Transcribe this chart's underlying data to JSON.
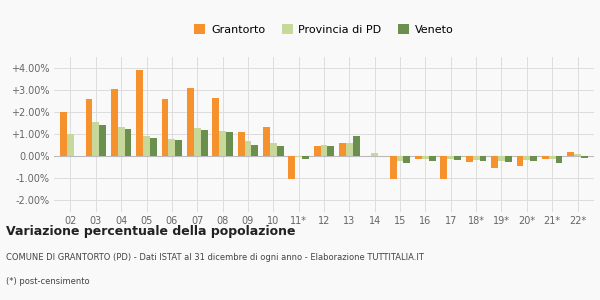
{
  "categories": [
    "02",
    "03",
    "04",
    "05",
    "06",
    "07",
    "08",
    "09",
    "10",
    "11*",
    "12",
    "13",
    "14",
    "15",
    "16",
    "17",
    "18*",
    "19*",
    "20*",
    "21*",
    "22*"
  ],
  "grantorto": [
    0.02,
    0.0258,
    0.0305,
    0.039,
    0.0258,
    0.031,
    0.0262,
    0.011,
    0.0135,
    -0.0105,
    0.0048,
    0.006,
    0.0003,
    -0.0102,
    -0.001,
    -0.0105,
    -0.0025,
    -0.0055,
    -0.0042,
    -0.001,
    0.002
  ],
  "provincia_pd": [
    0.0102,
    0.0155,
    0.0132,
    0.009,
    0.0078,
    0.0128,
    0.0115,
    0.0068,
    0.006,
    -0.0005,
    0.0052,
    0.006,
    0.0013,
    -0.0022,
    -0.0012,
    -0.001,
    -0.0018,
    -0.002,
    -0.0018,
    -0.0012,
    0.0012
  ],
  "veneto": [
    0.0,
    0.0142,
    0.0122,
    0.0082,
    0.0072,
    0.012,
    0.0108,
    0.0052,
    0.0048,
    -0.001,
    0.0045,
    0.0092,
    0.0,
    -0.003,
    -0.002,
    -0.0018,
    -0.0022,
    -0.0025,
    -0.0022,
    -0.0032,
    -0.0008
  ],
  "color_grantorto": "#f5922e",
  "color_provincia": "#c8d89a",
  "color_veneto": "#6b8f4e",
  "ylim": [
    -0.025,
    0.045
  ],
  "yticks": [
    -0.02,
    -0.01,
    0.0,
    0.01,
    0.02,
    0.03,
    0.04
  ],
  "ytick_labels": [
    "-2.00%",
    "-1.00%",
    "0.00%",
    "+1.00%",
    "+2.00%",
    "+3.00%",
    "+4.00%"
  ],
  "title": "Variazione percentuale della popolazione",
  "subtitle": "COMUNE DI GRANTORTO (PD) - Dati ISTAT al 31 dicembre di ogni anno - Elaborazione TUTTITALIA.IT",
  "footnote": "(*) post-censimento",
  "legend_labels": [
    "Grantorto",
    "Provincia di PD",
    "Veneto"
  ],
  "bg_color": "#f9f9f9",
  "grid_color": "#dddddd"
}
